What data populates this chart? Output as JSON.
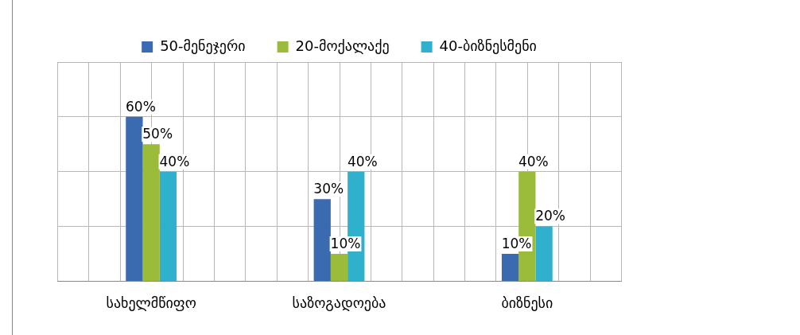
{
  "chart_data": {
    "type": "bar",
    "categories": [
      "სახელმწიფო",
      "საზოგადოება",
      "ბიზნესი"
    ],
    "series": [
      {
        "name": "50-მენეჯერი",
        "color": "#3a6ab0",
        "values": [
          60,
          30,
          10
        ],
        "value_labels": [
          "60%",
          "30%",
          "10%"
        ]
      },
      {
        "name": "20-მოქალაქე",
        "color": "#9bbb3b",
        "values": [
          50,
          10,
          40
        ],
        "value_labels": [
          "50%",
          "10%",
          "40%"
        ]
      },
      {
        "name": "40-ბიზნესმენი",
        "color": "#2fb0cc",
        "values": [
          40,
          40,
          20
        ],
        "value_labels": [
          "40%",
          "40%",
          "20%"
        ]
      }
    ],
    "ylim": [
      0,
      80
    ],
    "yticks": [
      {
        "value": 0,
        "label": null
      },
      {
        "value": 20,
        "label": null
      },
      {
        "value": 40,
        "label": null
      },
      {
        "value": 60,
        "label": null
      },
      {
        "value": 80,
        "label": null
      }
    ],
    "tick_labels": "x",
    "grid": true,
    "legend": "top"
  }
}
